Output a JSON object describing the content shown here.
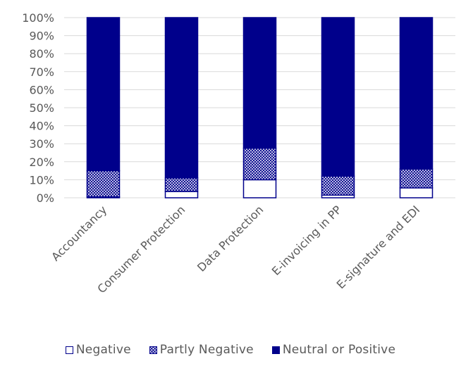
{
  "chart_data": {
    "type": "bar",
    "stacked": true,
    "percent_stacked": true,
    "categories": [
      "Accountancy",
      "Consumer Protection",
      "Data Protection",
      "E-invoicing in PP",
      "E-signature and EDI"
    ],
    "series": [
      {
        "name": "Negative",
        "values": [
          0.5,
          3.5,
          10,
          1.5,
          5.5
        ],
        "pattern": "none",
        "fill": "#ffffff"
      },
      {
        "name": "Partly Negative",
        "values": [
          14.5,
          7.5,
          17.5,
          10.5,
          10.5
        ],
        "pattern": "crosshatch",
        "fill": "#00008B"
      },
      {
        "name": "Neutral or Positive",
        "values": [
          85,
          89,
          72.5,
          88,
          84
        ],
        "pattern": "solid",
        "fill": "#00008B"
      }
    ],
    "title": "",
    "xlabel": "",
    "ylabel": "",
    "ylim": [
      0,
      100
    ],
    "yticks": [
      "0%",
      "10%",
      "20%",
      "30%",
      "40%",
      "50%",
      "60%",
      "70%",
      "80%",
      "90%",
      "100%"
    ],
    "grid": true,
    "legend_position": "bottom"
  },
  "colors": {
    "bar": "#00008B",
    "grid": "#d9d9d9",
    "text": "#595959"
  }
}
